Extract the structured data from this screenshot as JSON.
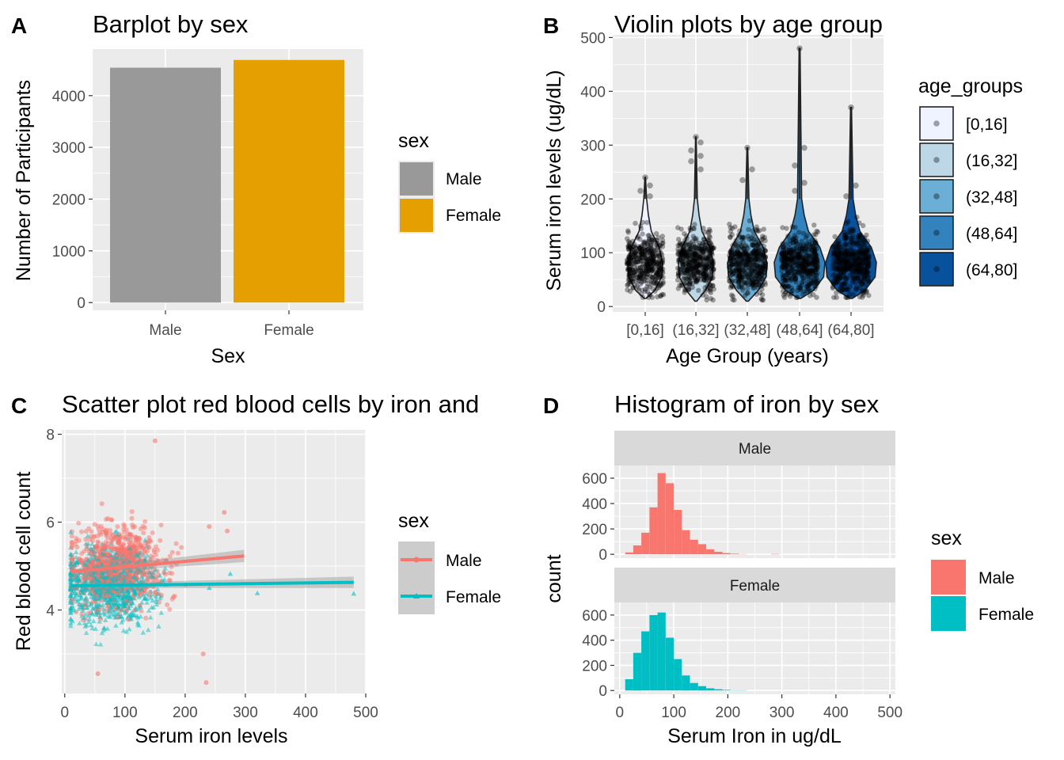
{
  "panel_labels": [
    "A",
    "B",
    "C",
    "D"
  ],
  "colors": {
    "panel_bg": "#EBEBEB",
    "grid": "#FFFFFF",
    "strip_bg": "#D9D9D9",
    "tick_text": "#4D4D4D",
    "male_bar": "#999999",
    "female_bar": "#E69F00",
    "male": "#F8766D",
    "female": "#00BFC4",
    "age_fills": [
      "#EFF3FF",
      "#BDD7E7",
      "#6BAED6",
      "#3182BD",
      "#08519C"
    ]
  },
  "chart_data": [
    {
      "id": "A",
      "type": "bar",
      "title": "Barplot by sex",
      "xlabel": "Sex",
      "ylabel": "Number of Participants",
      "categories": [
        "Male",
        "Female"
      ],
      "values": [
        4540,
        4690
      ],
      "ylim": [
        -150,
        4900
      ],
      "yticks": [
        0,
        1000,
        2000,
        3000,
        4000
      ],
      "legend": {
        "title": "sex",
        "entries": [
          "Male",
          "Female"
        ],
        "position": "right"
      }
    },
    {
      "id": "B",
      "type": "violin",
      "title": "Violin plots by age group",
      "xlabel": "Age Group (years)",
      "ylabel": "Serum iron levels (ug/dL)",
      "categories": [
        "[0,16]",
        "(16,32]",
        "(32,48]",
        "(48,64]",
        "(64,80]"
      ],
      "ylim": [
        -10,
        505
      ],
      "yticks": [
        0,
        100,
        200,
        300,
        400,
        500
      ],
      "series": [
        {
          "group": "[0,16]",
          "min": 15,
          "max": 240,
          "median": 80,
          "outliers": [
            240,
            225,
            215,
            205
          ]
        },
        {
          "group": "(16,32]",
          "min": 10,
          "max": 315,
          "median": 82,
          "outliers": [
            315,
            305,
            290,
            280,
            270,
            255
          ]
        },
        {
          "group": "(32,48]",
          "min": 10,
          "max": 295,
          "median": 80,
          "outliers": [
            295,
            255,
            235
          ]
        },
        {
          "group": "(48,64]",
          "min": 15,
          "max": 480,
          "median": 82,
          "outliers": [
            480,
            295,
            262,
            230,
            215
          ]
        },
        {
          "group": "(64,80]",
          "min": 15,
          "max": 370,
          "median": 82,
          "outliers": [
            370,
            225,
            205
          ]
        }
      ],
      "legend": {
        "title": "age_groups",
        "entries": [
          "[0,16]",
          "(16,32]",
          "(32,48]",
          "(48,64]",
          "(64,80]"
        ],
        "position": "right"
      }
    },
    {
      "id": "C",
      "type": "scatter",
      "title": "Scatter plot red blood cells by iron and",
      "xlabel": "Serum iron levels",
      "ylabel": "Red blood cell count",
      "xlim": [
        -5,
        500
      ],
      "ylim": [
        2.1,
        8.1
      ],
      "xticks": [
        0,
        100,
        200,
        300,
        400,
        500
      ],
      "yticks": [
        4,
        6,
        8
      ],
      "series": [
        {
          "name": "Male",
          "fit": [
            [
              10,
              4.87
            ],
            [
              298,
              5.23
            ]
          ],
          "x_center": 90,
          "y_center": 5.0
        },
        {
          "name": "Female",
          "fit": [
            [
              10,
              4.55
            ],
            [
              480,
              4.63
            ]
          ],
          "x_center": 75,
          "y_center": 4.55
        }
      ],
      "legend": {
        "title": "sex",
        "entries": [
          "Male",
          "Female"
        ],
        "position": "right"
      }
    },
    {
      "id": "D",
      "type": "histogram",
      "title": "Histogram of iron by sex",
      "xlabel": "Serum Iron in ug/dL",
      "ylabel": "count",
      "xlim": [
        -10,
        510
      ],
      "ylim": [
        -30,
        700
      ],
      "xticks": [
        0,
        100,
        200,
        300,
        400,
        500
      ],
      "yticks": [
        0,
        200,
        400,
        600
      ],
      "bin_edges": [
        10,
        25,
        40,
        55,
        70,
        85,
        100,
        115,
        130,
        145,
        160,
        175,
        190,
        205,
        220,
        235,
        250,
        265,
        280,
        295
      ],
      "facets": [
        {
          "strip": "Male",
          "counts": [
            15,
            70,
            170,
            370,
            640,
            560,
            350,
            190,
            115,
            80,
            40,
            20,
            10,
            5,
            2,
            0,
            0,
            0,
            3
          ]
        },
        {
          "strip": "Female",
          "counts": [
            90,
            300,
            470,
            600,
            620,
            420,
            250,
            120,
            60,
            35,
            18,
            10,
            5,
            2,
            2,
            0,
            0,
            0,
            0
          ]
        }
      ],
      "legend": {
        "title": "sex",
        "entries": [
          "Male",
          "Female"
        ],
        "position": "right"
      }
    }
  ]
}
